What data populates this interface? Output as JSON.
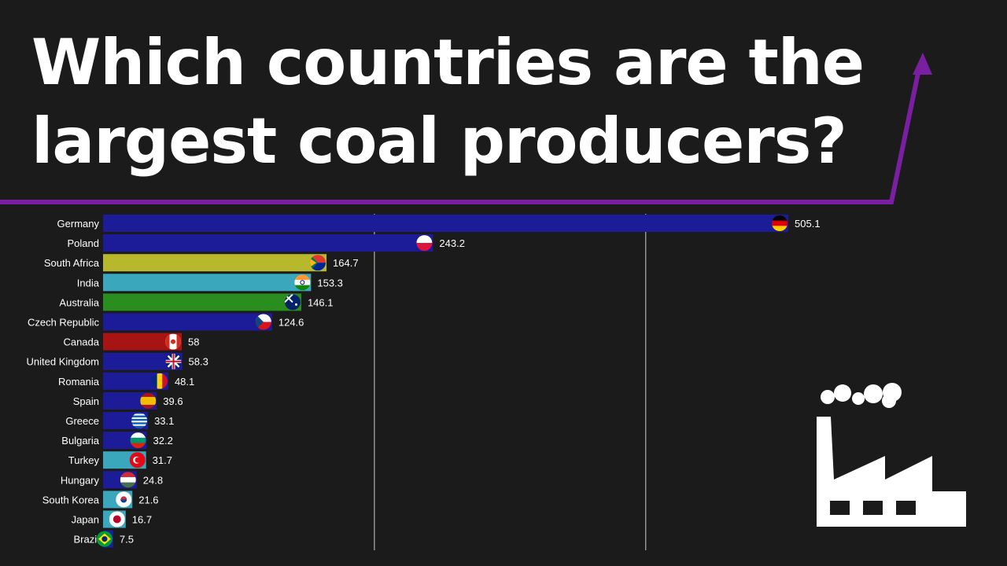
{
  "title": "Which countries are the largest coal producers?",
  "colors": {
    "background": "#1b1b1b",
    "title_text": "#ffffff",
    "accent_arrow": "#7b1fa2",
    "gridline": "#cfcfcf",
    "bar_blue": "#1c1c99",
    "bar_yellow": "#b8b82c",
    "bar_teal": "#3aa7bd",
    "bar_green": "#2a8e1e",
    "bar_red": "#a81414",
    "icon": "#ffffff"
  },
  "icons": {
    "trend_arrow": "trend-arrow-icon",
    "factory": "factory-icon"
  },
  "chart_data": {
    "type": "bar",
    "orientation": "horizontal",
    "title": "",
    "xlabel": "",
    "ylabel": "",
    "xlim": [
      0,
      600
    ],
    "grid": true,
    "gridlines_at": [
      200,
      400
    ],
    "value_labels": true,
    "categories": [
      "Germany",
      "Poland",
      "South Africa",
      "India",
      "Australia",
      "Czech Republic",
      "Canada",
      "United Kingdom",
      "Romania",
      "Spain",
      "Greece",
      "Bulgaria",
      "Turkey",
      "Hungary",
      "South Korea",
      "Japan",
      "Brazil"
    ],
    "values": [
      505.1,
      243.2,
      164.7,
      153.3,
      146.1,
      124.6,
      58,
      58.3,
      48.1,
      39.6,
      33.1,
      32.2,
      31.7,
      24.8,
      21.6,
      16.7,
      7.5
    ],
    "value_labels_text": [
      "505.1",
      "243.2",
      "164.7",
      "153.3",
      "146.1",
      "124.6",
      "58",
      "58.3",
      "48.1",
      "39.6",
      "33.1",
      "32.2",
      "31.7",
      "24.8",
      "21.6",
      "16.7",
      "7.5"
    ],
    "bar_colors": [
      "#1c1c99",
      "#1c1c99",
      "#b8b82c",
      "#3aa7bd",
      "#2a8e1e",
      "#1c1c99",
      "#a81414",
      "#1c1c99",
      "#1c1c99",
      "#1c1c99",
      "#1c1c99",
      "#1c1c99",
      "#3aa7bd",
      "#1c1c99",
      "#3aa7bd",
      "#3aa7bd",
      "#1c1c99"
    ],
    "flags": [
      "germany-flag-icon",
      "poland-flag-icon",
      "south-africa-flag-icon",
      "india-flag-icon",
      "australia-flag-icon",
      "czech-republic-flag-icon",
      "canada-flag-icon",
      "united-kingdom-flag-icon",
      "romania-flag-icon",
      "spain-flag-icon",
      "greece-flag-icon",
      "bulgaria-flag-icon",
      "turkey-flag-icon",
      "hungary-flag-icon",
      "south-korea-flag-icon",
      "japan-flag-icon",
      "brazil-flag-icon"
    ]
  }
}
